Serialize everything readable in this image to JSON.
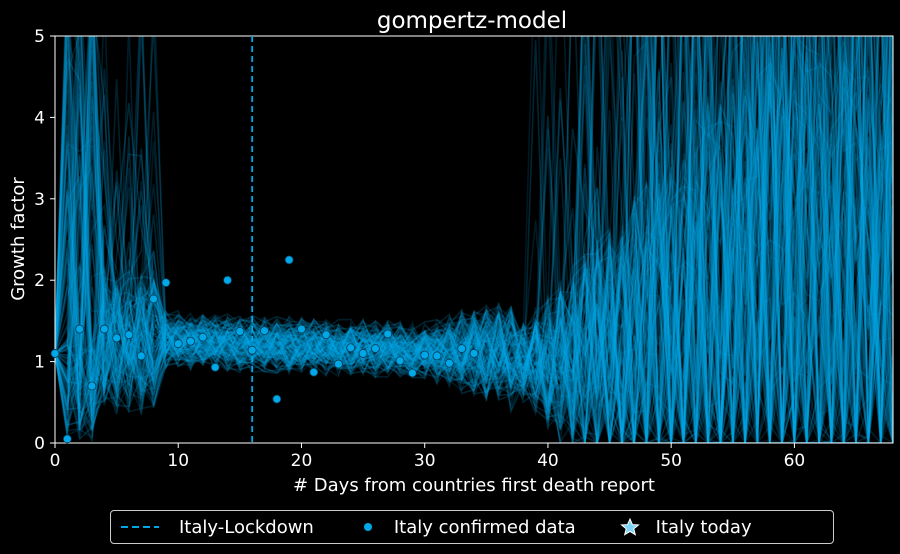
{
  "chart_data": {
    "type": "line",
    "title": "gompertz-model",
    "xlabel": "# Days from countries first death report",
    "ylabel": "Growth factor",
    "xlim": [
      0,
      68
    ],
    "ylim": [
      0,
      5
    ],
    "xticks": [
      "0",
      "10",
      "20",
      "30",
      "40",
      "50",
      "60"
    ],
    "yticks": [
      "0",
      "1",
      "2",
      "3",
      "4",
      "5"
    ],
    "grid": false,
    "background": "#000000",
    "lockdown_day": 16,
    "series": [
      {
        "name": "Italy confirmed data",
        "kind": "scatter",
        "color": "#00a8e8",
        "x": [
          0,
          1,
          2,
          3,
          4,
          5,
          6,
          7,
          8,
          9,
          10,
          11,
          12,
          13,
          14,
          15,
          16,
          17,
          18,
          19,
          20,
          21,
          22,
          23,
          24,
          25,
          26,
          27,
          28,
          29,
          30,
          31,
          32,
          33,
          34
        ],
        "y": [
          1.1,
          0.05,
          1.4,
          0.7,
          1.4,
          1.29,
          1.33,
          1.07,
          1.77,
          1.97,
          1.22,
          1.25,
          1.3,
          0.93,
          2.0,
          1.37,
          1.14,
          1.38,
          0.54,
          2.25,
          1.4,
          0.87,
          1.33,
          0.97,
          1.17,
          1.1,
          1.16,
          1.34,
          1.01,
          0.86,
          1.08,
          1.07,
          0.98,
          1.16,
          1.1
        ]
      },
      {
        "name": "Italy-Lockdown",
        "kind": "vline",
        "color": "#00a8e8"
      },
      {
        "name": "Italy today",
        "kind": "star",
        "color": "#00a8e8"
      },
      {
        "name": "gompertz-model simulations",
        "kind": "ensemble",
        "color": "#00a8e8",
        "note": "many semi-transparent simulated trajectories; median near 1.2 around days 10-35, spread growing beyond day 40"
      }
    ],
    "legend": {
      "placement": "bottom-center, below axes",
      "entries": [
        {
          "label": "Italy-Lockdown",
          "marker": "dashed-line"
        },
        {
          "label": "Italy confirmed data",
          "marker": "dot"
        },
        {
          "label": "Italy today",
          "marker": "star"
        }
      ]
    }
  }
}
